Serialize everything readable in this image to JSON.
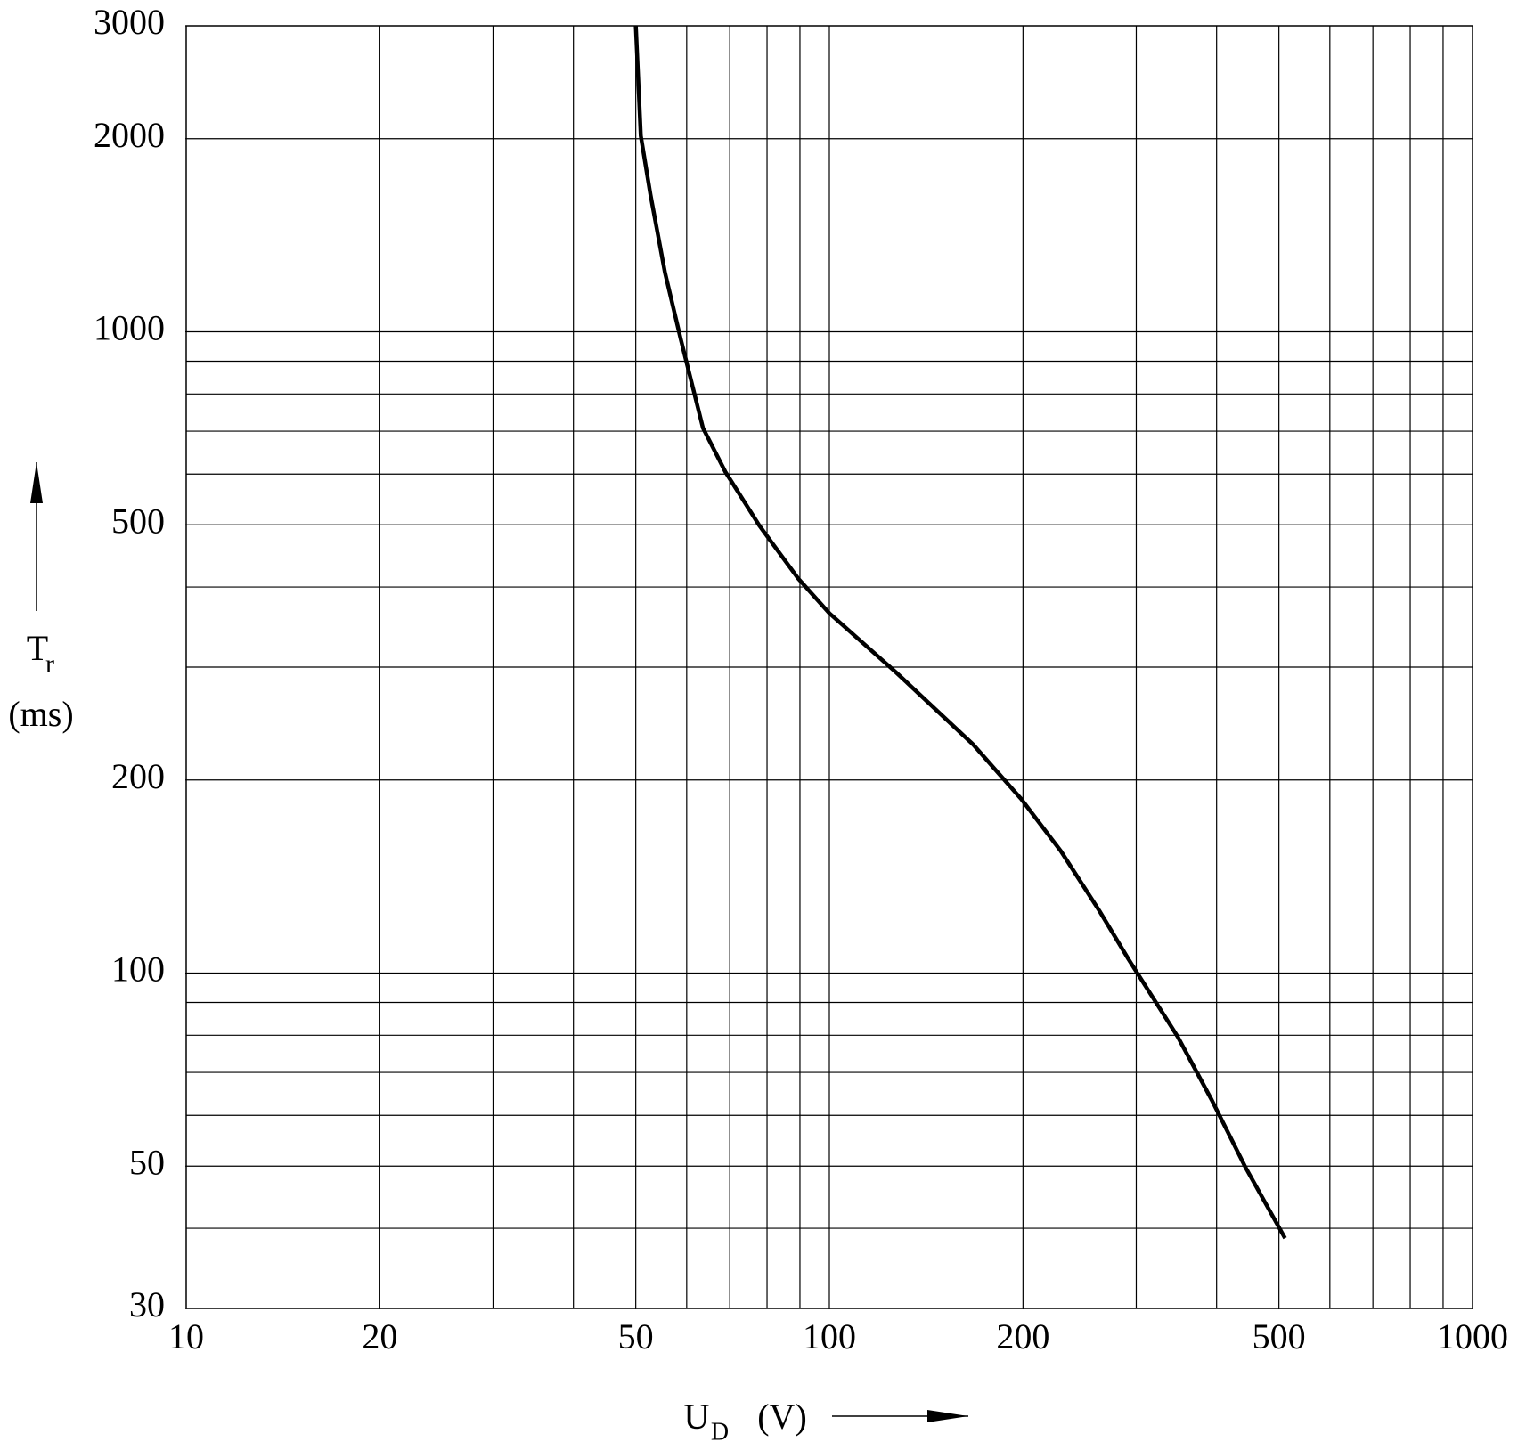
{
  "chart_data": {
    "type": "line",
    "x_label": "U",
    "x_label_sub": "D",
    "x_unit": "(V)",
    "y_label": "T",
    "y_label_sub": "r",
    "y_unit": "(ms)",
    "x_log": true,
    "y_log": true,
    "grid": true,
    "xlim": [
      10,
      1000
    ],
    "ylim": [
      30,
      3000
    ],
    "xticks": [
      10,
      20,
      50,
      100,
      200,
      500,
      1000
    ],
    "yticks": [
      30,
      50,
      100,
      200,
      500,
      1000,
      2000,
      3000
    ],
    "xgrid": [
      20,
      30,
      40,
      50,
      60,
      70,
      80,
      90,
      100,
      200,
      300,
      400,
      500,
      600,
      700,
      800,
      900
    ],
    "ygrid": [
      40,
      50,
      60,
      70,
      80,
      90,
      100,
      200,
      300,
      400,
      500,
      600,
      700,
      800,
      900,
      1000,
      2000
    ],
    "series": [
      {
        "color": "#000000",
        "x": [
          50,
          50.9,
          52.7,
          55.5,
          58.7,
          63.6,
          68.9,
          77.8,
          89.5,
          100,
          126.7,
          167.5,
          198.6,
          229,
          263,
          292,
          348,
          393,
          444,
          511
        ],
        "values": [
          3000,
          2021,
          1638,
          1238,
          976,
          708,
          605,
          499,
          412,
          364,
          295,
          227,
          187,
          155,
          125,
          105,
          79.6,
          63.4,
          49.7,
          38.6
        ]
      }
    ]
  }
}
